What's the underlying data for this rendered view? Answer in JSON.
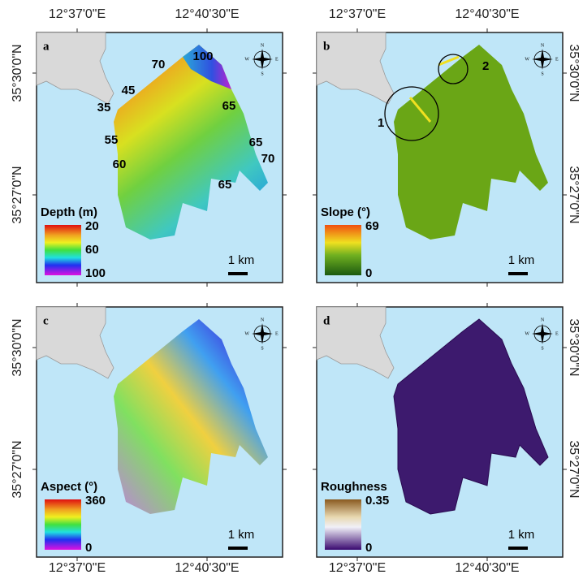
{
  "coordinates": {
    "top": [
      "12°37'0\"E",
      "12°40'30\"E"
    ],
    "bottom": [
      "12°37'0\"E",
      "12°40'30\"E"
    ],
    "left": [
      "35°30'0\"N",
      "35°27'0\"N"
    ],
    "right": [
      "35°30'0\"N",
      "35°27'0\"N"
    ]
  },
  "compass": {
    "north": "N",
    "east": "E",
    "south": "S",
    "west": "W"
  },
  "panels": [
    {
      "label": "a",
      "legend_title": "Depth (m)",
      "legend_labels": [
        "20",
        "60",
        "100"
      ],
      "scale_label": "1 km",
      "contour_labels": [
        "100",
        "70",
        "45",
        "35",
        "65",
        "55",
        "60",
        "65",
        "70",
        "65"
      ]
    },
    {
      "label": "b",
      "legend_title": "Slope (°)",
      "legend_labels": [
        "69",
        "0"
      ],
      "scale_label": "1 km",
      "circle_labels": [
        "1",
        "2"
      ]
    },
    {
      "label": "c",
      "legend_title": "Aspect (°)",
      "legend_labels": [
        "360",
        "0"
      ],
      "scale_label": "1 km"
    },
    {
      "label": "d",
      "legend_title": "Roughness",
      "legend_labels": [
        "0.35",
        "0"
      ],
      "scale_label": "1 km"
    }
  ]
}
